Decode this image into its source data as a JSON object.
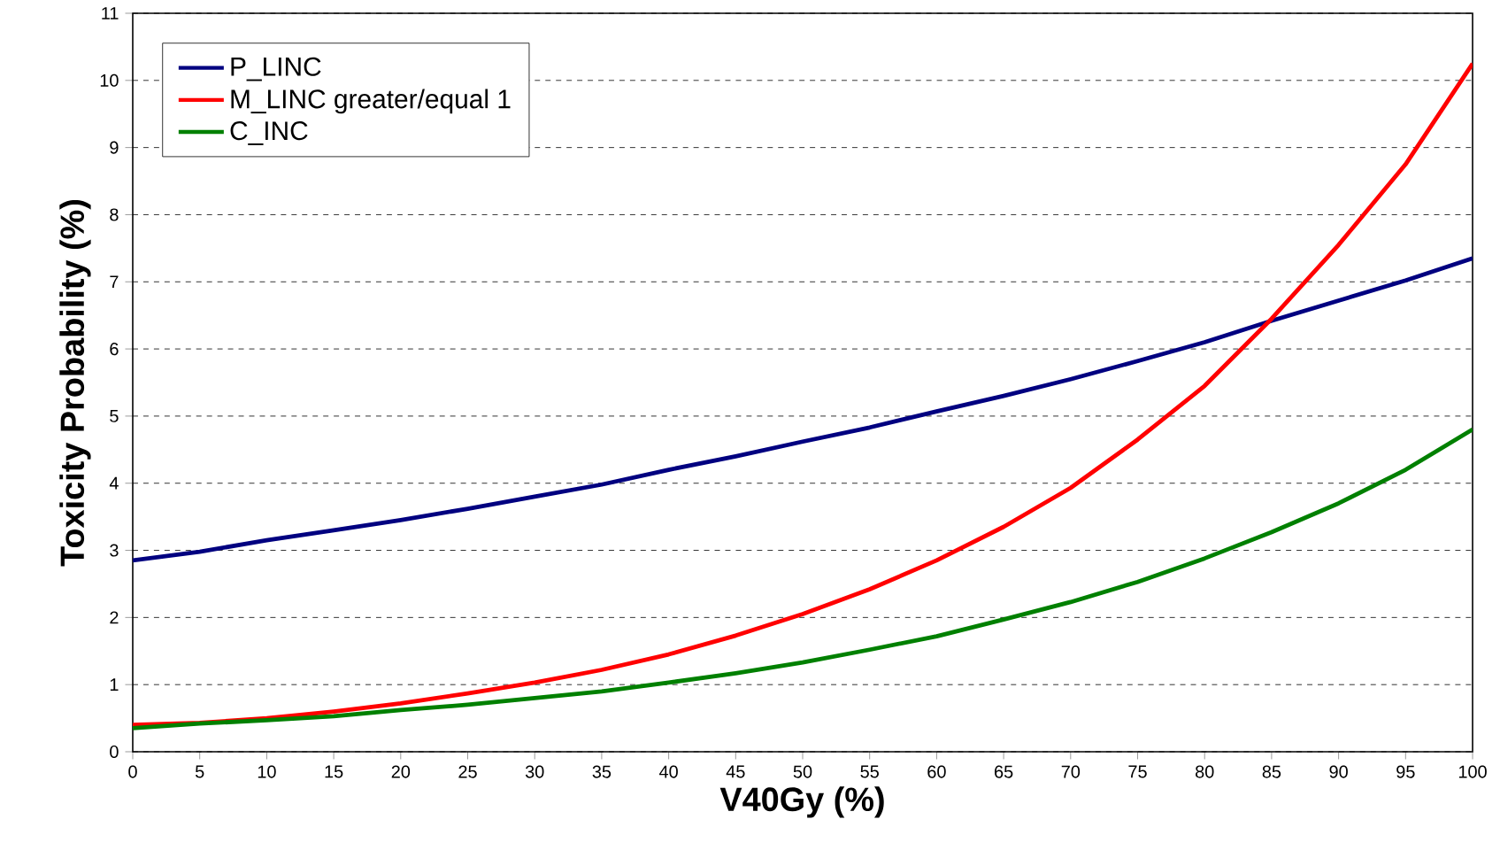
{
  "chart_data": {
    "type": "line",
    "xlabel": "V40Gy (%)",
    "ylabel": "Toxicity Probability (%)",
    "x": [
      0,
      5,
      10,
      15,
      20,
      25,
      30,
      35,
      40,
      45,
      50,
      55,
      60,
      65,
      70,
      75,
      80,
      85,
      90,
      95,
      100
    ],
    "series": [
      {
        "name": "P_LINC",
        "color": "#000080",
        "values": [
          2.85,
          2.98,
          3.15,
          3.3,
          3.45,
          3.62,
          3.8,
          3.98,
          4.2,
          4.4,
          4.62,
          4.83,
          5.07,
          5.3,
          5.55,
          5.82,
          6.1,
          6.42,
          6.72,
          7.02,
          7.35
        ]
      },
      {
        "name": "M_LINC greater/equal 1",
        "color": "#ff0000",
        "values": [
          0.4,
          0.43,
          0.5,
          0.6,
          0.72,
          0.87,
          1.03,
          1.22,
          1.45,
          1.73,
          2.05,
          2.42,
          2.85,
          3.35,
          3.93,
          4.65,
          5.45,
          6.45,
          7.55,
          8.75,
          10.25
        ]
      },
      {
        "name": "C_INC",
        "color": "#008000",
        "values": [
          0.35,
          0.42,
          0.47,
          0.53,
          0.62,
          0.7,
          0.8,
          0.9,
          1.03,
          1.17,
          1.33,
          1.52,
          1.72,
          1.97,
          2.23,
          2.53,
          2.88,
          3.27,
          3.7,
          4.2,
          4.8
        ]
      }
    ],
    "xlim": [
      0,
      100
    ],
    "ylim": [
      0,
      11
    ],
    "xticks": [
      0,
      5,
      10,
      15,
      20,
      25,
      30,
      35,
      40,
      45,
      50,
      55,
      60,
      65,
      70,
      75,
      80,
      85,
      90,
      95,
      100
    ],
    "yticks": [
      0,
      1,
      2,
      3,
      4,
      5,
      6,
      7,
      8,
      9,
      10,
      11
    ],
    "grid": "y",
    "legend": "top left",
    "marker": "none",
    "line_style": "solid"
  }
}
